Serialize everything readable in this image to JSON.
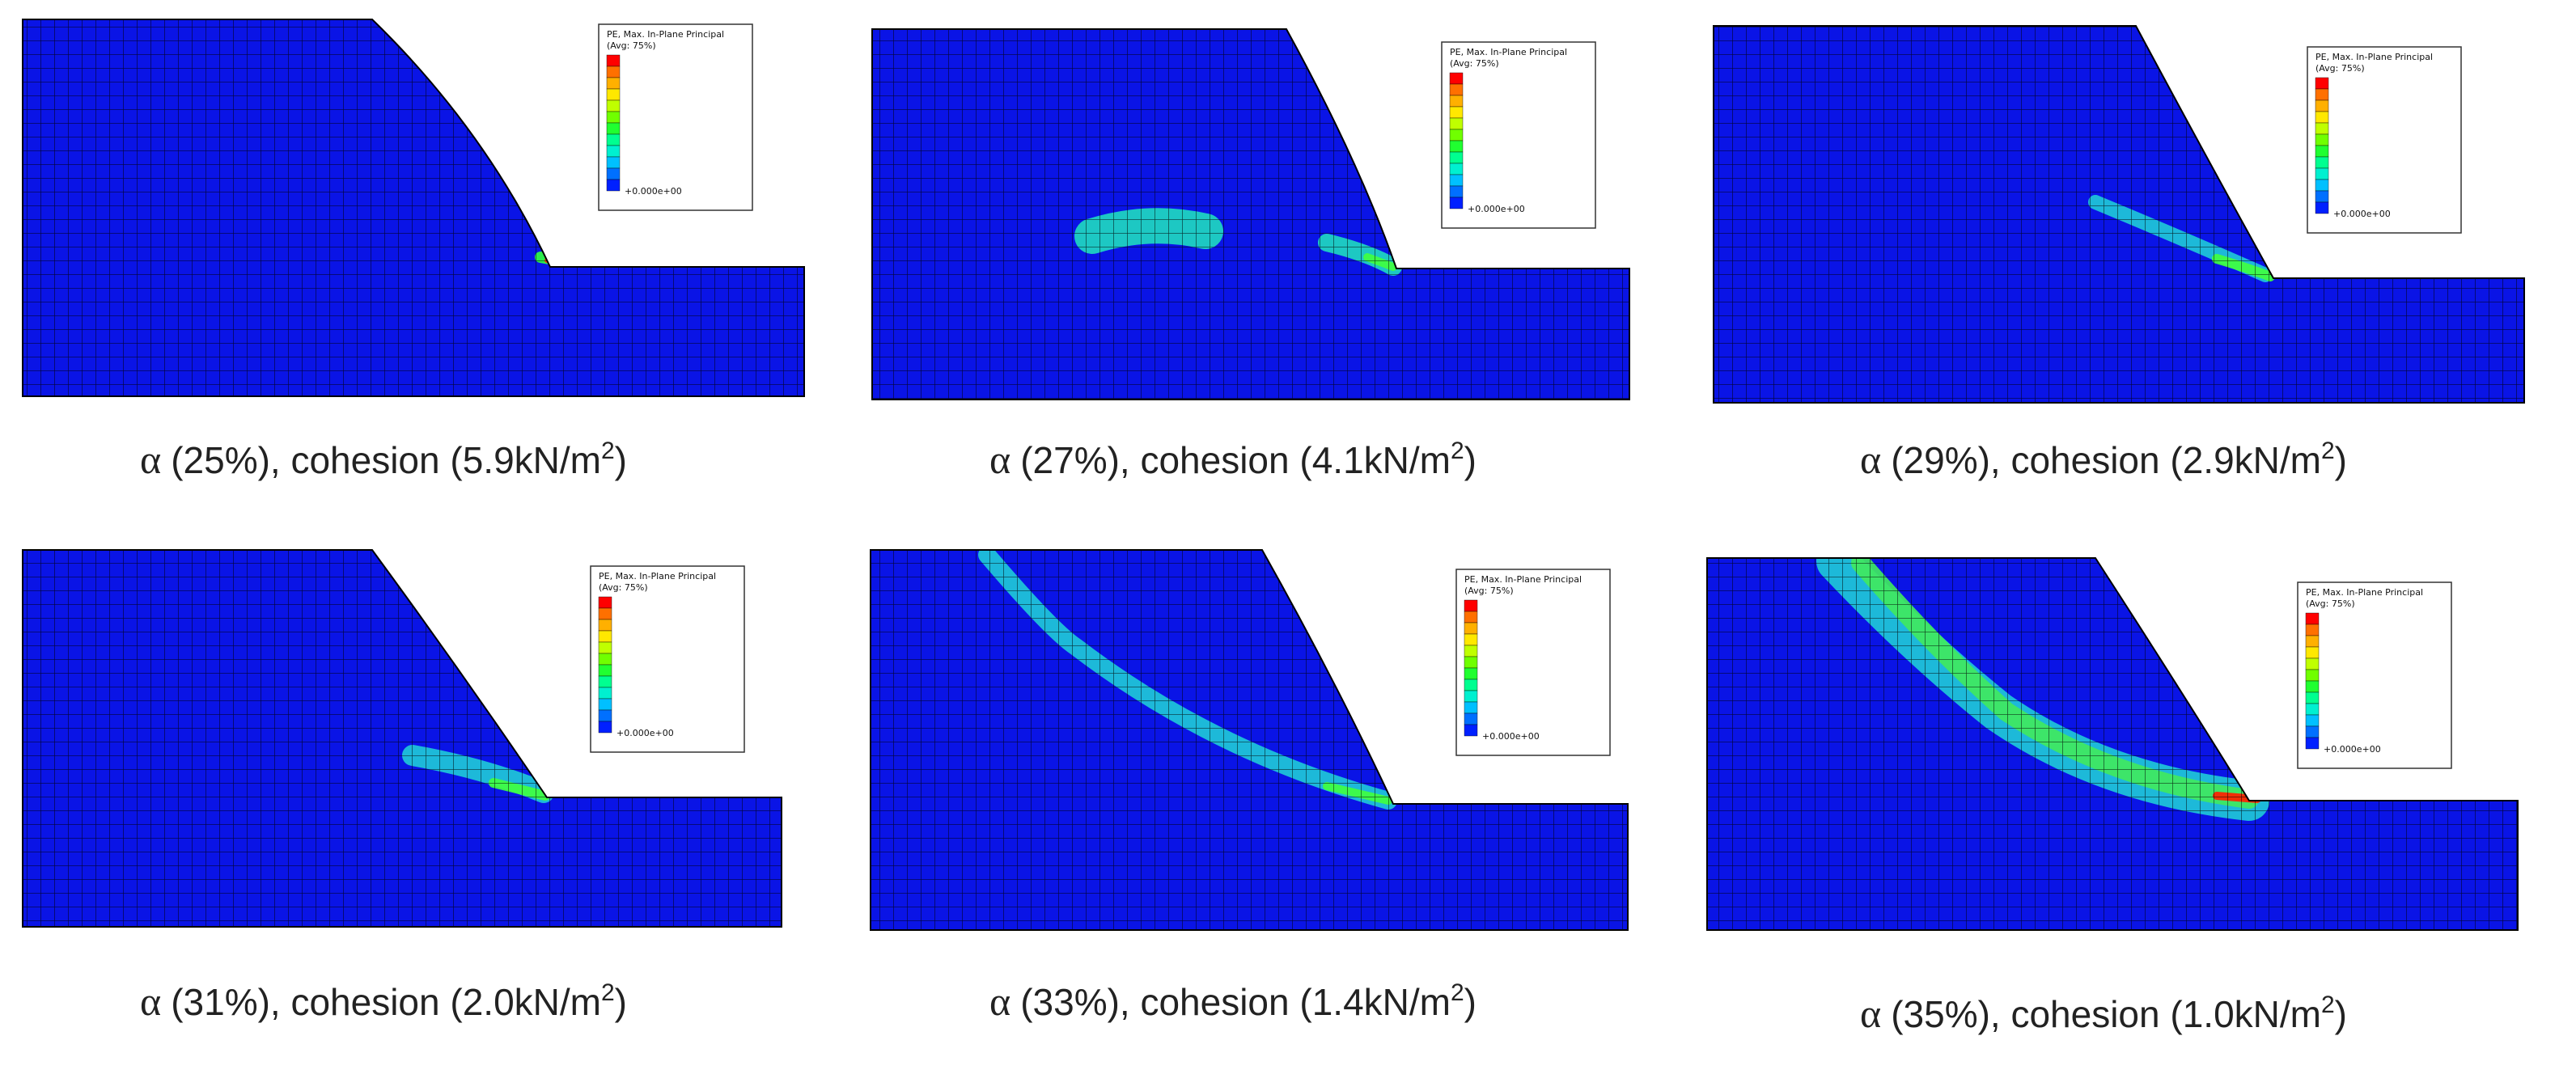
{
  "panels": [
    {
      "legend": {
        "title": "PE, Max. In-Plane Principal",
        "average": "(Avg: 75%)",
        "minimum": "+0.000e+00"
      },
      "caption": {
        "symbol": "α",
        "text": "(25%), cohesion (5.9kN/m",
        "superscript": "2",
        "suffix": ")"
      }
    },
    {
      "legend": {
        "title": "PE, Max. In-Plane Principal",
        "average": "(Avg: 75%)",
        "minimum": "+0.000e+00"
      },
      "caption": {
        "symbol": "α",
        "text": "(27%), cohesion (4.1kN/m",
        "superscript": "2",
        "suffix": ")"
      }
    },
    {
      "legend": {
        "title": "PE, Max. In-Plane Principal",
        "average": "(Avg: 75%)",
        "minimum": "+0.000e+00"
      },
      "caption": {
        "symbol": "α",
        "text": "(29%), cohesion (2.9kN/m",
        "superscript": "2",
        "suffix": ")"
      }
    },
    {
      "legend": {
        "title": "PE, Max. In-Plane Principal",
        "average": "(Avg: 75%)",
        "minimum": "+0.000e+00"
      },
      "caption": {
        "symbol": "α",
        "text": "(31%), cohesion (2.0kN/m",
        "superscript": "2",
        "suffix": ")"
      }
    },
    {
      "legend": {
        "title": "PE, Max. In-Plane Principal",
        "average": "(Avg: 75%)",
        "minimum": "+0.000e+00"
      },
      "caption": {
        "symbol": "α",
        "text": "(33%), cohesion (1.4kN/m",
        "superscript": "2",
        "suffix": ")"
      }
    },
    {
      "legend": {
        "title": "PE, Max. In-Plane Principal",
        "average": "(Avg: 75%)",
        "minimum": "+0.000e+00"
      },
      "caption": {
        "symbol": "α",
        "text": "(35%), cohesion (1.0kN/m",
        "superscript": "2",
        "suffix": ")"
      }
    }
  ]
}
